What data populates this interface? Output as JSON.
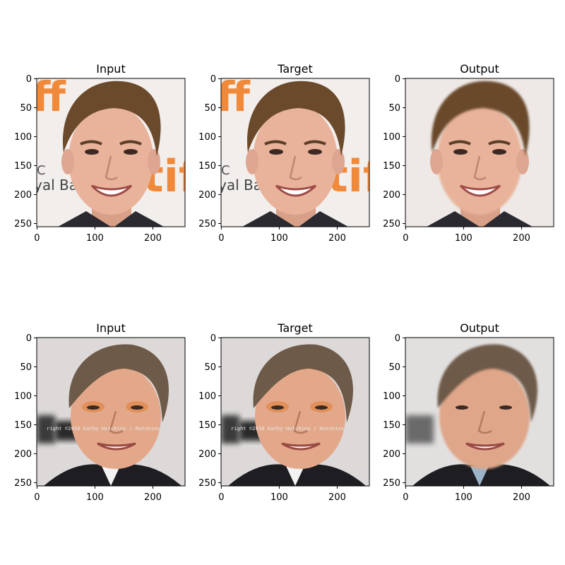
{
  "figure": {
    "rows": [
      {
        "subject": "young-man-smiling",
        "panels": [
          {
            "title": "Input",
            "kind": "input"
          },
          {
            "title": "Target",
            "kind": "target"
          },
          {
            "title": "Output",
            "kind": "output"
          }
        ]
      },
      {
        "subject": "older-man-smiling",
        "panels": [
          {
            "title": "Input",
            "kind": "input"
          },
          {
            "title": "Target",
            "kind": "target"
          },
          {
            "title": "Output",
            "kind": "output"
          }
        ]
      }
    ],
    "x_ticks": [
      "0",
      "100",
      "200"
    ],
    "y_ticks": [
      "0",
      "50",
      "100",
      "150",
      "200",
      "250"
    ],
    "x_tick_values": [
      0,
      100,
      200
    ],
    "y_tick_values": [
      0,
      50,
      100,
      150,
      200,
      250
    ],
    "image_extent": 256,
    "background_text_row1": [
      "ff",
      "tif",
      "yal Ban",
      "C"
    ],
    "watermark_row2": "right ©2010 Kathy Hutchins / Hutchins",
    "colors": {
      "skin": "#e8b39a",
      "hair_young": "#6b4a2b",
      "hair_old": "#6e5a48",
      "orange_logo": "#f08a3a",
      "backdrop": "#f2eeec",
      "suit": "#1e1e22"
    }
  }
}
